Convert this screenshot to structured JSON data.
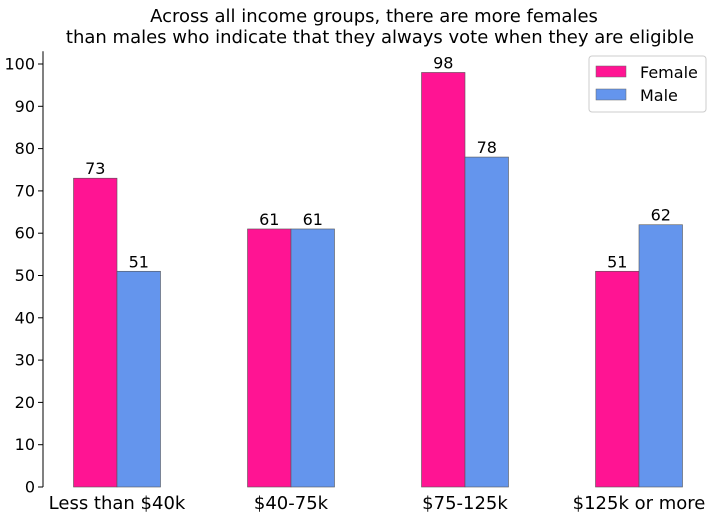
{
  "chart_data": {
    "type": "bar",
    "title_lines": [
      "Across all income groups, there are more females",
      "than males who indicate that they always vote when they are eligible"
    ],
    "xlabel": "",
    "ylabel": "",
    "categories": [
      "Less than $40k",
      "$40-75k",
      "$75-125k",
      "$125k or more"
    ],
    "series": [
      {
        "name": "Female",
        "values": [
          73,
          61,
          98,
          51
        ],
        "color": "#FF1493"
      },
      {
        "name": "Male",
        "values": [
          51,
          61,
          78,
          62
        ],
        "color": "#6495ED"
      }
    ],
    "ylim": [
      0,
      103
    ],
    "yticks": [
      "0",
      "10",
      "20",
      "30",
      "40",
      "50",
      "60",
      "70",
      "80",
      "90",
      "100"
    ],
    "legend_position": "top-right",
    "grid": false
  }
}
